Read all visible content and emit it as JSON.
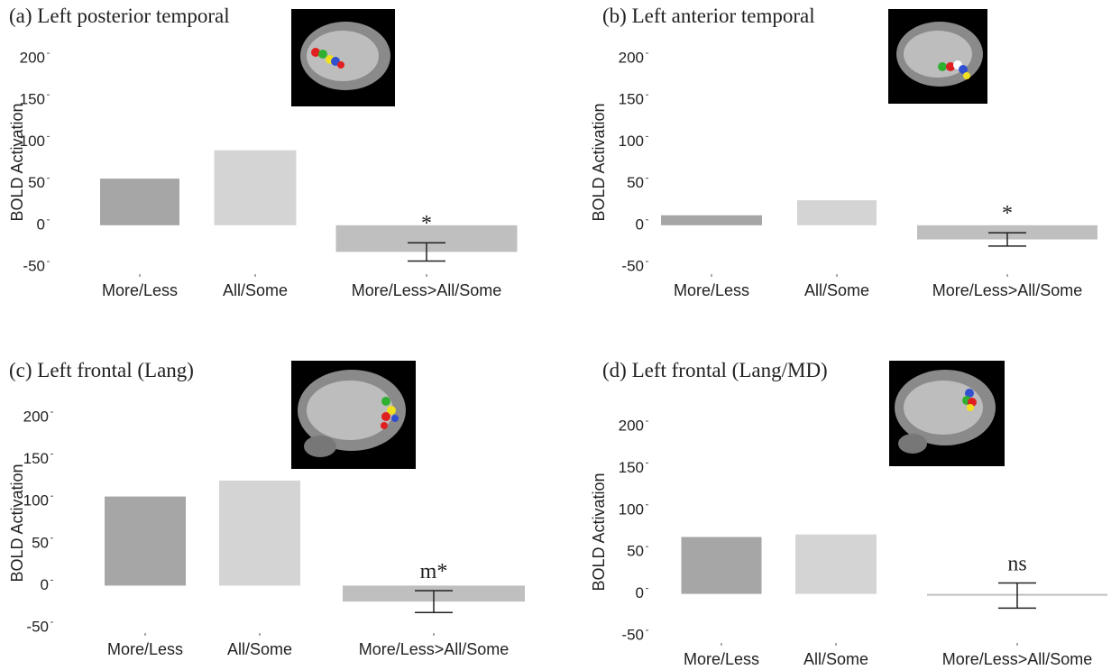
{
  "chart_data": [
    {
      "type": "bar",
      "title": "(a) Left posterior temporal",
      "y_label": "BOLD Activation",
      "categories": [
        "More/Less",
        "All/Some",
        "More/Less>All/Some"
      ],
      "values": [
        56,
        90,
        -32
      ],
      "errors": [
        null,
        null,
        11
      ],
      "colors": [
        "#a6a6a6",
        "#d4d4d4",
        "#bfbfbf"
      ],
      "annotation": "*",
      "ylim": [
        -50,
        200
      ],
      "yticks": [
        -50,
        0,
        50,
        100,
        150,
        200
      ]
    },
    {
      "type": "bar",
      "title": "(b) Left anterior temporal",
      "y_label": "BOLD Activation",
      "categories": [
        "More/Less",
        "All/Some",
        "More/Less>All/Some"
      ],
      "values": [
        12,
        30,
        -17
      ],
      "errors": [
        null,
        null,
        8
      ],
      "colors": [
        "#a6a6a6",
        "#d4d4d4",
        "#bfbfbf"
      ],
      "annotation": "*",
      "ylim": [
        -50,
        200
      ],
      "yticks": [
        -50,
        0,
        50,
        100,
        150,
        200
      ]
    },
    {
      "type": "bar",
      "title": "(c) Left frontal (Lang)",
      "y_label": "BOLD Activation",
      "categories": [
        "More/Less",
        "All/Some",
        "More/Less>All/Some"
      ],
      "values": [
        106,
        125,
        -19
      ],
      "errors": [
        null,
        null,
        13
      ],
      "colors": [
        "#a6a6a6",
        "#d4d4d4",
        "#bfbfbf"
      ],
      "annotation": "m*",
      "ylim": [
        -50,
        200
      ],
      "yticks": [
        -50,
        0,
        50,
        100,
        150,
        200
      ]
    },
    {
      "type": "bar",
      "title": "(d) Left frontal (Lang/MD)",
      "y_label": "BOLD Activation",
      "categories": [
        "More/Less",
        "All/Some",
        "More/Less>All/Some"
      ],
      "values": [
        68,
        71,
        -2
      ],
      "errors": [
        null,
        null,
        15
      ],
      "colors": [
        "#a6a6a6",
        "#d4d4d4",
        "#bfbfbf"
      ],
      "annotation": "ns",
      "ylim": [
        -50,
        200
      ],
      "yticks": [
        -50,
        0,
        50,
        100,
        150,
        200
      ]
    }
  ]
}
